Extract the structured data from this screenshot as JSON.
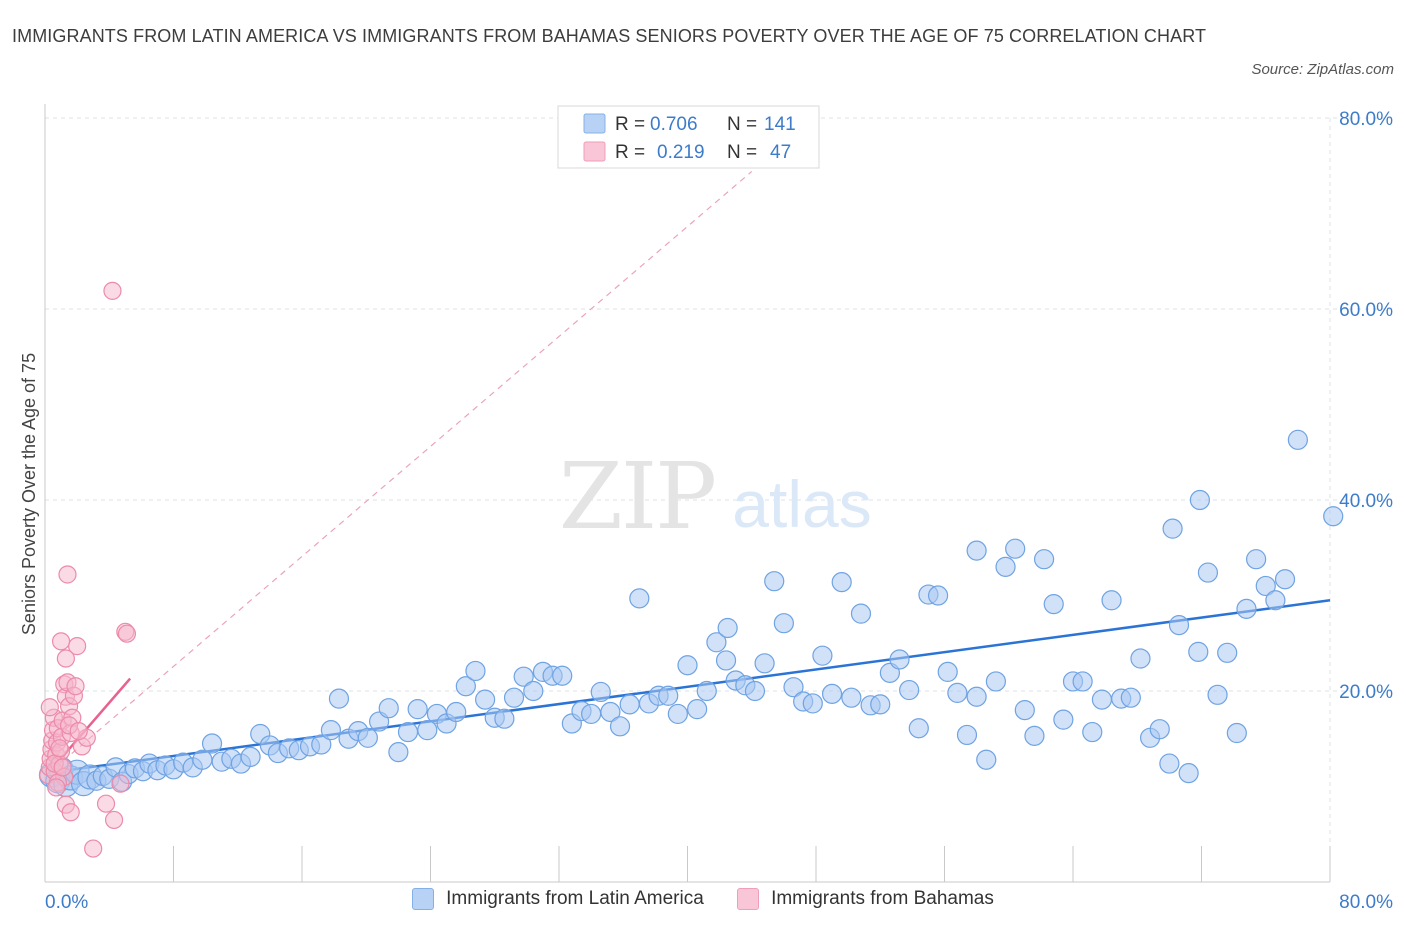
{
  "header": {
    "title": "IMMIGRANTS FROM LATIN AMERICA VS IMMIGRANTS FROM BAHAMAS SENIORS POVERTY OVER THE AGE OF 75 CORRELATION CHART",
    "source": "Source: ZipAtlas.com"
  },
  "watermark": {
    "zip": "ZIP",
    "atlas": "atlas"
  },
  "colors": {
    "blue_fill": "#a9c9f2",
    "blue_stroke": "#6fa3e3",
    "blue_line": "#2b74d6",
    "pink_fill": "#f6b8cb",
    "pink_stroke": "#ec8aa9",
    "pink_line": "#e8628f",
    "label_blue": "#3d7cc9",
    "grid": "#dde3ea"
  },
  "legend": {
    "row1": {
      "r_label": "R = ",
      "r_value": "0.706",
      "n_label": "N = ",
      "n_value": "141"
    },
    "row2": {
      "r_label": "R = ",
      "r_value": "0.219",
      "n_label": "N = ",
      "n_value": "47"
    }
  },
  "chart_data": {
    "type": "scatter",
    "title": "IMMIGRANTS FROM LATIN AMERICA VS IMMIGRANTS FROM BAHAMAS SENIORS POVERTY OVER THE AGE OF 75 CORRELATION CHART",
    "xlabel": "",
    "ylabel": "Seniors Poverty Over the Age of 75",
    "xlim": [
      0,
      80
    ],
    "ylim": [
      0,
      80
    ],
    "x_tick_labels": [
      "0.0%",
      "80.0%"
    ],
    "y_tick_labels": [
      "20.0%",
      "40.0%",
      "60.0%",
      "80.0%"
    ],
    "y_ticks": [
      20,
      40,
      60,
      80
    ],
    "grid": true,
    "legend_position": "top-center",
    "series": [
      {
        "name": "Immigrants from Latin America",
        "color": "#a9c9f2",
        "trend": {
          "x": [
            0.5,
            80
          ],
          "y": [
            11.5,
            29.5
          ]
        },
        "points": [
          [
            0.4,
            11.2
          ],
          [
            0.8,
            10.6
          ],
          [
            1.0,
            11.8
          ],
          [
            1.3,
            10.2
          ],
          [
            1.6,
            10.9
          ],
          [
            2.0,
            11.5
          ],
          [
            2.4,
            10.3
          ],
          [
            2.8,
            11.0
          ],
          [
            3.2,
            10.6
          ],
          [
            3.6,
            11.1
          ],
          [
            4.0,
            10.8
          ],
          [
            4.4,
            12.0
          ],
          [
            4.8,
            10.5
          ],
          [
            5.2,
            11.3
          ],
          [
            5.6,
            11.9
          ],
          [
            6.1,
            11.6
          ],
          [
            6.5,
            12.4
          ],
          [
            7.0,
            11.7
          ],
          [
            7.5,
            12.2
          ],
          [
            8.0,
            11.8
          ],
          [
            8.6,
            12.5
          ],
          [
            9.2,
            12.0
          ],
          [
            9.8,
            12.8
          ],
          [
            10.4,
            14.5
          ],
          [
            11.0,
            12.6
          ],
          [
            11.6,
            12.9
          ],
          [
            12.2,
            12.4
          ],
          [
            12.8,
            13.1
          ],
          [
            13.4,
            15.5
          ],
          [
            14.0,
            14.3
          ],
          [
            14.5,
            13.5
          ],
          [
            15.2,
            14.0
          ],
          [
            15.8,
            13.8
          ],
          [
            16.5,
            14.2
          ],
          [
            17.2,
            14.4
          ],
          [
            17.8,
            15.9
          ],
          [
            18.3,
            19.2
          ],
          [
            18.9,
            15.0
          ],
          [
            19.5,
            15.8
          ],
          [
            20.1,
            15.1
          ],
          [
            20.8,
            16.8
          ],
          [
            21.4,
            18.2
          ],
          [
            22.0,
            13.6
          ],
          [
            22.6,
            15.7
          ],
          [
            23.2,
            18.1
          ],
          [
            23.8,
            15.9
          ],
          [
            24.4,
            17.6
          ],
          [
            25.0,
            16.6
          ],
          [
            25.6,
            17.8
          ],
          [
            26.2,
            20.5
          ],
          [
            26.8,
            22.1
          ],
          [
            27.4,
            19.1
          ],
          [
            28.0,
            17.2
          ],
          [
            28.6,
            17.1
          ],
          [
            29.2,
            19.3
          ],
          [
            29.8,
            21.5
          ],
          [
            30.4,
            20.0
          ],
          [
            31.0,
            22.0
          ],
          [
            31.6,
            21.6
          ],
          [
            32.2,
            21.6
          ],
          [
            32.8,
            16.6
          ],
          [
            33.4,
            17.9
          ],
          [
            34.0,
            17.6
          ],
          [
            34.6,
            19.9
          ],
          [
            35.2,
            17.8
          ],
          [
            35.8,
            16.3
          ],
          [
            36.4,
            18.6
          ],
          [
            37.0,
            29.7
          ],
          [
            37.6,
            18.7
          ],
          [
            38.2,
            19.5
          ],
          [
            38.8,
            19.5
          ],
          [
            39.4,
            17.6
          ],
          [
            40.0,
            22.7
          ],
          [
            40.6,
            18.1
          ],
          [
            41.2,
            20.0
          ],
          [
            41.8,
            25.1
          ],
          [
            42.4,
            23.2
          ],
          [
            43.0,
            21.1
          ],
          [
            43.6,
            20.6
          ],
          [
            44.2,
            20.0
          ],
          [
            44.8,
            22.9
          ],
          [
            45.4,
            31.5
          ],
          [
            46.0,
            27.1
          ],
          [
            46.6,
            20.4
          ],
          [
            47.2,
            18.9
          ],
          [
            47.8,
            18.7
          ],
          [
            48.4,
            23.7
          ],
          [
            49.0,
            19.7
          ],
          [
            49.6,
            31.4
          ],
          [
            50.2,
            19.3
          ],
          [
            50.8,
            28.1
          ],
          [
            51.4,
            18.5
          ],
          [
            52.0,
            18.6
          ],
          [
            52.6,
            21.9
          ],
          [
            53.2,
            23.3
          ],
          [
            53.8,
            20.1
          ],
          [
            54.4,
            16.1
          ],
          [
            55.0,
            30.1
          ],
          [
            55.6,
            30.0
          ],
          [
            56.2,
            22.0
          ],
          [
            56.8,
            19.8
          ],
          [
            57.4,
            15.4
          ],
          [
            58.0,
            19.4
          ],
          [
            58.6,
            12.8
          ],
          [
            59.2,
            21.0
          ],
          [
            59.8,
            33.0
          ],
          [
            60.4,
            34.9
          ],
          [
            61.0,
            18.0
          ],
          [
            61.6,
            15.3
          ],
          [
            62.2,
            33.8
          ],
          [
            62.8,
            29.1
          ],
          [
            63.4,
            17.0
          ],
          [
            64.0,
            21.0
          ],
          [
            64.6,
            21.0
          ],
          [
            65.2,
            15.7
          ],
          [
            65.8,
            19.1
          ],
          [
            66.4,
            29.5
          ],
          [
            67.0,
            19.2
          ],
          [
            67.6,
            19.3
          ],
          [
            68.2,
            23.4
          ],
          [
            68.8,
            15.1
          ],
          [
            69.4,
            16.0
          ],
          [
            70.0,
            12.4
          ],
          [
            70.6,
            26.9
          ],
          [
            71.2,
            11.4
          ],
          [
            71.8,
            24.1
          ],
          [
            72.4,
            32.4
          ],
          [
            73.0,
            19.6
          ],
          [
            73.6,
            24.0
          ],
          [
            74.2,
            15.6
          ],
          [
            74.8,
            28.6
          ],
          [
            75.4,
            33.8
          ],
          [
            76.0,
            31.0
          ],
          [
            76.6,
            29.5
          ],
          [
            77.2,
            31.7
          ],
          [
            78.0,
            46.3
          ],
          [
            80.2,
            38.3
          ],
          [
            42.5,
            26.6
          ],
          [
            58.0,
            34.7
          ],
          [
            70.2,
            37.0
          ],
          [
            71.9,
            40.0
          ]
        ]
      },
      {
        "name": "Immigrants from Bahamas",
        "color": "#f6b8cb",
        "trend": {
          "x": [
            0.1,
            5.3
          ],
          "y": [
            11.2,
            21.3
          ]
        },
        "trend_extended": {
          "x": [
            0.1,
            44.0
          ],
          "y": [
            11.2,
            74.4
          ]
        },
        "points": [
          [
            0.2,
            11.2
          ],
          [
            0.3,
            12.0
          ],
          [
            0.35,
            12.9
          ],
          [
            0.4,
            13.9
          ],
          [
            0.45,
            14.8
          ],
          [
            0.5,
            15.9
          ],
          [
            0.55,
            17.2
          ],
          [
            0.3,
            18.3
          ],
          [
            0.6,
            11.6
          ],
          [
            0.7,
            13.3
          ],
          [
            0.75,
            14.6
          ],
          [
            0.8,
            16.1
          ],
          [
            0.9,
            12.3
          ],
          [
            1.0,
            13.7
          ],
          [
            1.05,
            15.2
          ],
          [
            1.1,
            16.9
          ],
          [
            1.2,
            20.7
          ],
          [
            1.3,
            19.4
          ],
          [
            1.4,
            20.9
          ],
          [
            1.5,
            18.4
          ],
          [
            1.6,
            15.6
          ],
          [
            1.7,
            17.2
          ],
          [
            1.8,
            19.5
          ],
          [
            1.9,
            20.5
          ],
          [
            2.0,
            24.7
          ],
          [
            1.0,
            25.2
          ],
          [
            1.3,
            23.4
          ],
          [
            1.4,
            32.2
          ],
          [
            2.3,
            14.2
          ],
          [
            2.6,
            15.1
          ],
          [
            1.2,
            11.0
          ],
          [
            1.3,
            8.1
          ],
          [
            1.6,
            7.3
          ],
          [
            3.0,
            3.5
          ],
          [
            3.8,
            8.2
          ],
          [
            4.3,
            6.5
          ],
          [
            4.7,
            10.3
          ],
          [
            5.0,
            26.2
          ],
          [
            5.1,
            26.0
          ],
          [
            4.2,
            61.9
          ],
          [
            0.8,
            10.4
          ],
          [
            0.6,
            12.4
          ],
          [
            1.1,
            12.0
          ],
          [
            0.9,
            14.0
          ],
          [
            1.5,
            16.4
          ],
          [
            2.1,
            15.8
          ],
          [
            0.7,
            9.9
          ]
        ]
      }
    ]
  },
  "bottom_legend": {
    "items": [
      {
        "label": "Immigrants from Latin America"
      },
      {
        "label": "Immigrants from Bahamas"
      }
    ]
  }
}
